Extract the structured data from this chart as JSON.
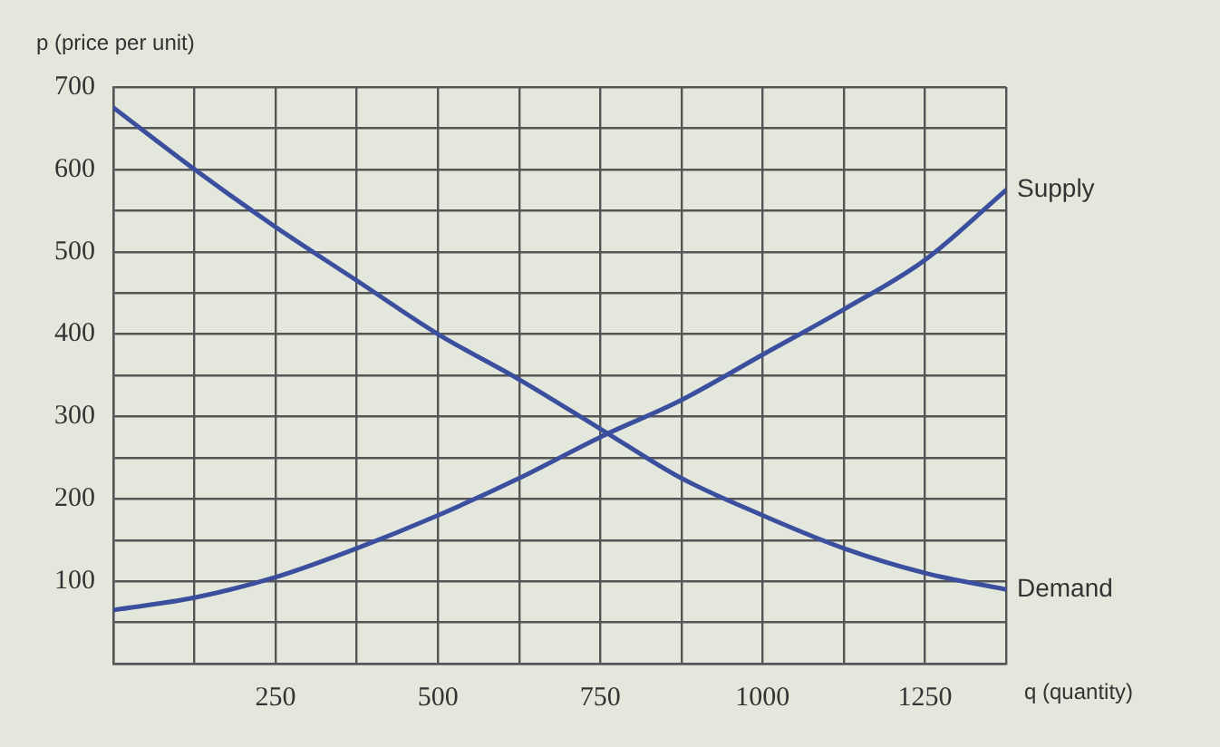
{
  "chart_data": {
    "type": "line",
    "xlabel": "q (quantity)",
    "ylabel": "p (price per unit)",
    "x": [
      0,
      125,
      250,
      375,
      500,
      625,
      750,
      875,
      1000,
      1125,
      1250,
      1375
    ],
    "series": [
      {
        "name": "Supply",
        "color": "#3b4f9e",
        "values": [
          65,
          80,
          105,
          140,
          180,
          225,
          275,
          320,
          375,
          430,
          490,
          575
        ]
      },
      {
        "name": "Demand",
        "color": "#3b4f9e",
        "values": [
          675,
          600,
          530,
          465,
          400,
          345,
          285,
          225,
          180,
          140,
          110,
          90
        ]
      }
    ],
    "xlim": [
      0,
      1375
    ],
    "xticks": [
      {
        "value": 0,
        "label": null
      },
      {
        "value": 125,
        "label": null
      },
      250,
      {
        "value": 375,
        "label": null
      },
      500,
      {
        "value": 625,
        "label": null
      },
      750,
      {
        "value": 875,
        "label": null
      },
      1000,
      {
        "value": 1125,
        "label": null
      },
      1250,
      {
        "value": 1375,
        "label": null
      }
    ],
    "ylim": [
      0,
      700
    ],
    "yticks": [
      {
        "value": 0,
        "label": null
      },
      {
        "value": 50,
        "label": null
      },
      100,
      {
        "value": 150,
        "label": null
      },
      200,
      {
        "value": 250,
        "label": null
      },
      300,
      {
        "value": 350,
        "label": null
      },
      400,
      {
        "value": 450,
        "label": null
      },
      500,
      {
        "value": 550,
        "label": null
      },
      600,
      {
        "value": 650,
        "label": null
      },
      700
    ],
    "grid": true,
    "legend": false,
    "marker": "none",
    "line_style": "solid"
  }
}
